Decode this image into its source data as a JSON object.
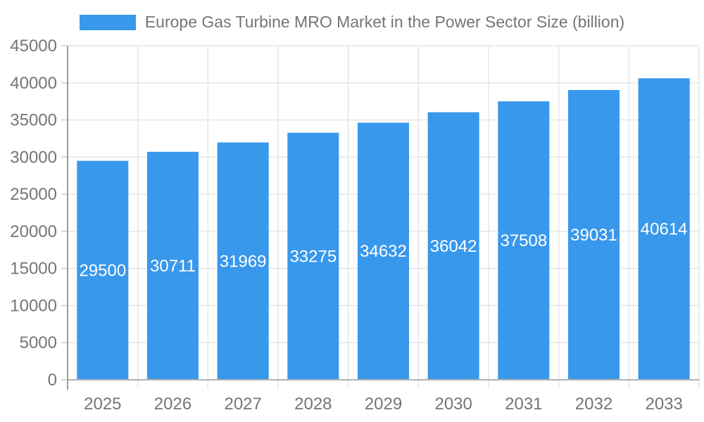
{
  "chart_data": {
    "type": "bar",
    "title": "Europe Gas Turbine MRO Market in the Power Sector Size (billion)",
    "categories": [
      "2025",
      "2026",
      "2027",
      "2028",
      "2029",
      "2030",
      "2031",
      "2032",
      "2033"
    ],
    "values": [
      29500,
      30711,
      31969,
      33275,
      34632,
      36042,
      37508,
      39031,
      40614
    ],
    "xlabel": "",
    "ylabel": "",
    "ylim": [
      0,
      45000
    ],
    "ytick_step": 5000,
    "yticks": [
      0,
      5000,
      10000,
      15000,
      20000,
      25000,
      30000,
      35000,
      40000,
      45000
    ],
    "grid": true,
    "legend_position": "top",
    "colors": {
      "bar": "#3898EC",
      "bar_value_label": "#ffffff",
      "axis_text": "#757575",
      "gridline": "#e6e6e6",
      "tick": "#cccccc",
      "baseline": "#b3b3b3",
      "axis_line": "#9e9e9e",
      "legend_text": "#757575"
    }
  }
}
